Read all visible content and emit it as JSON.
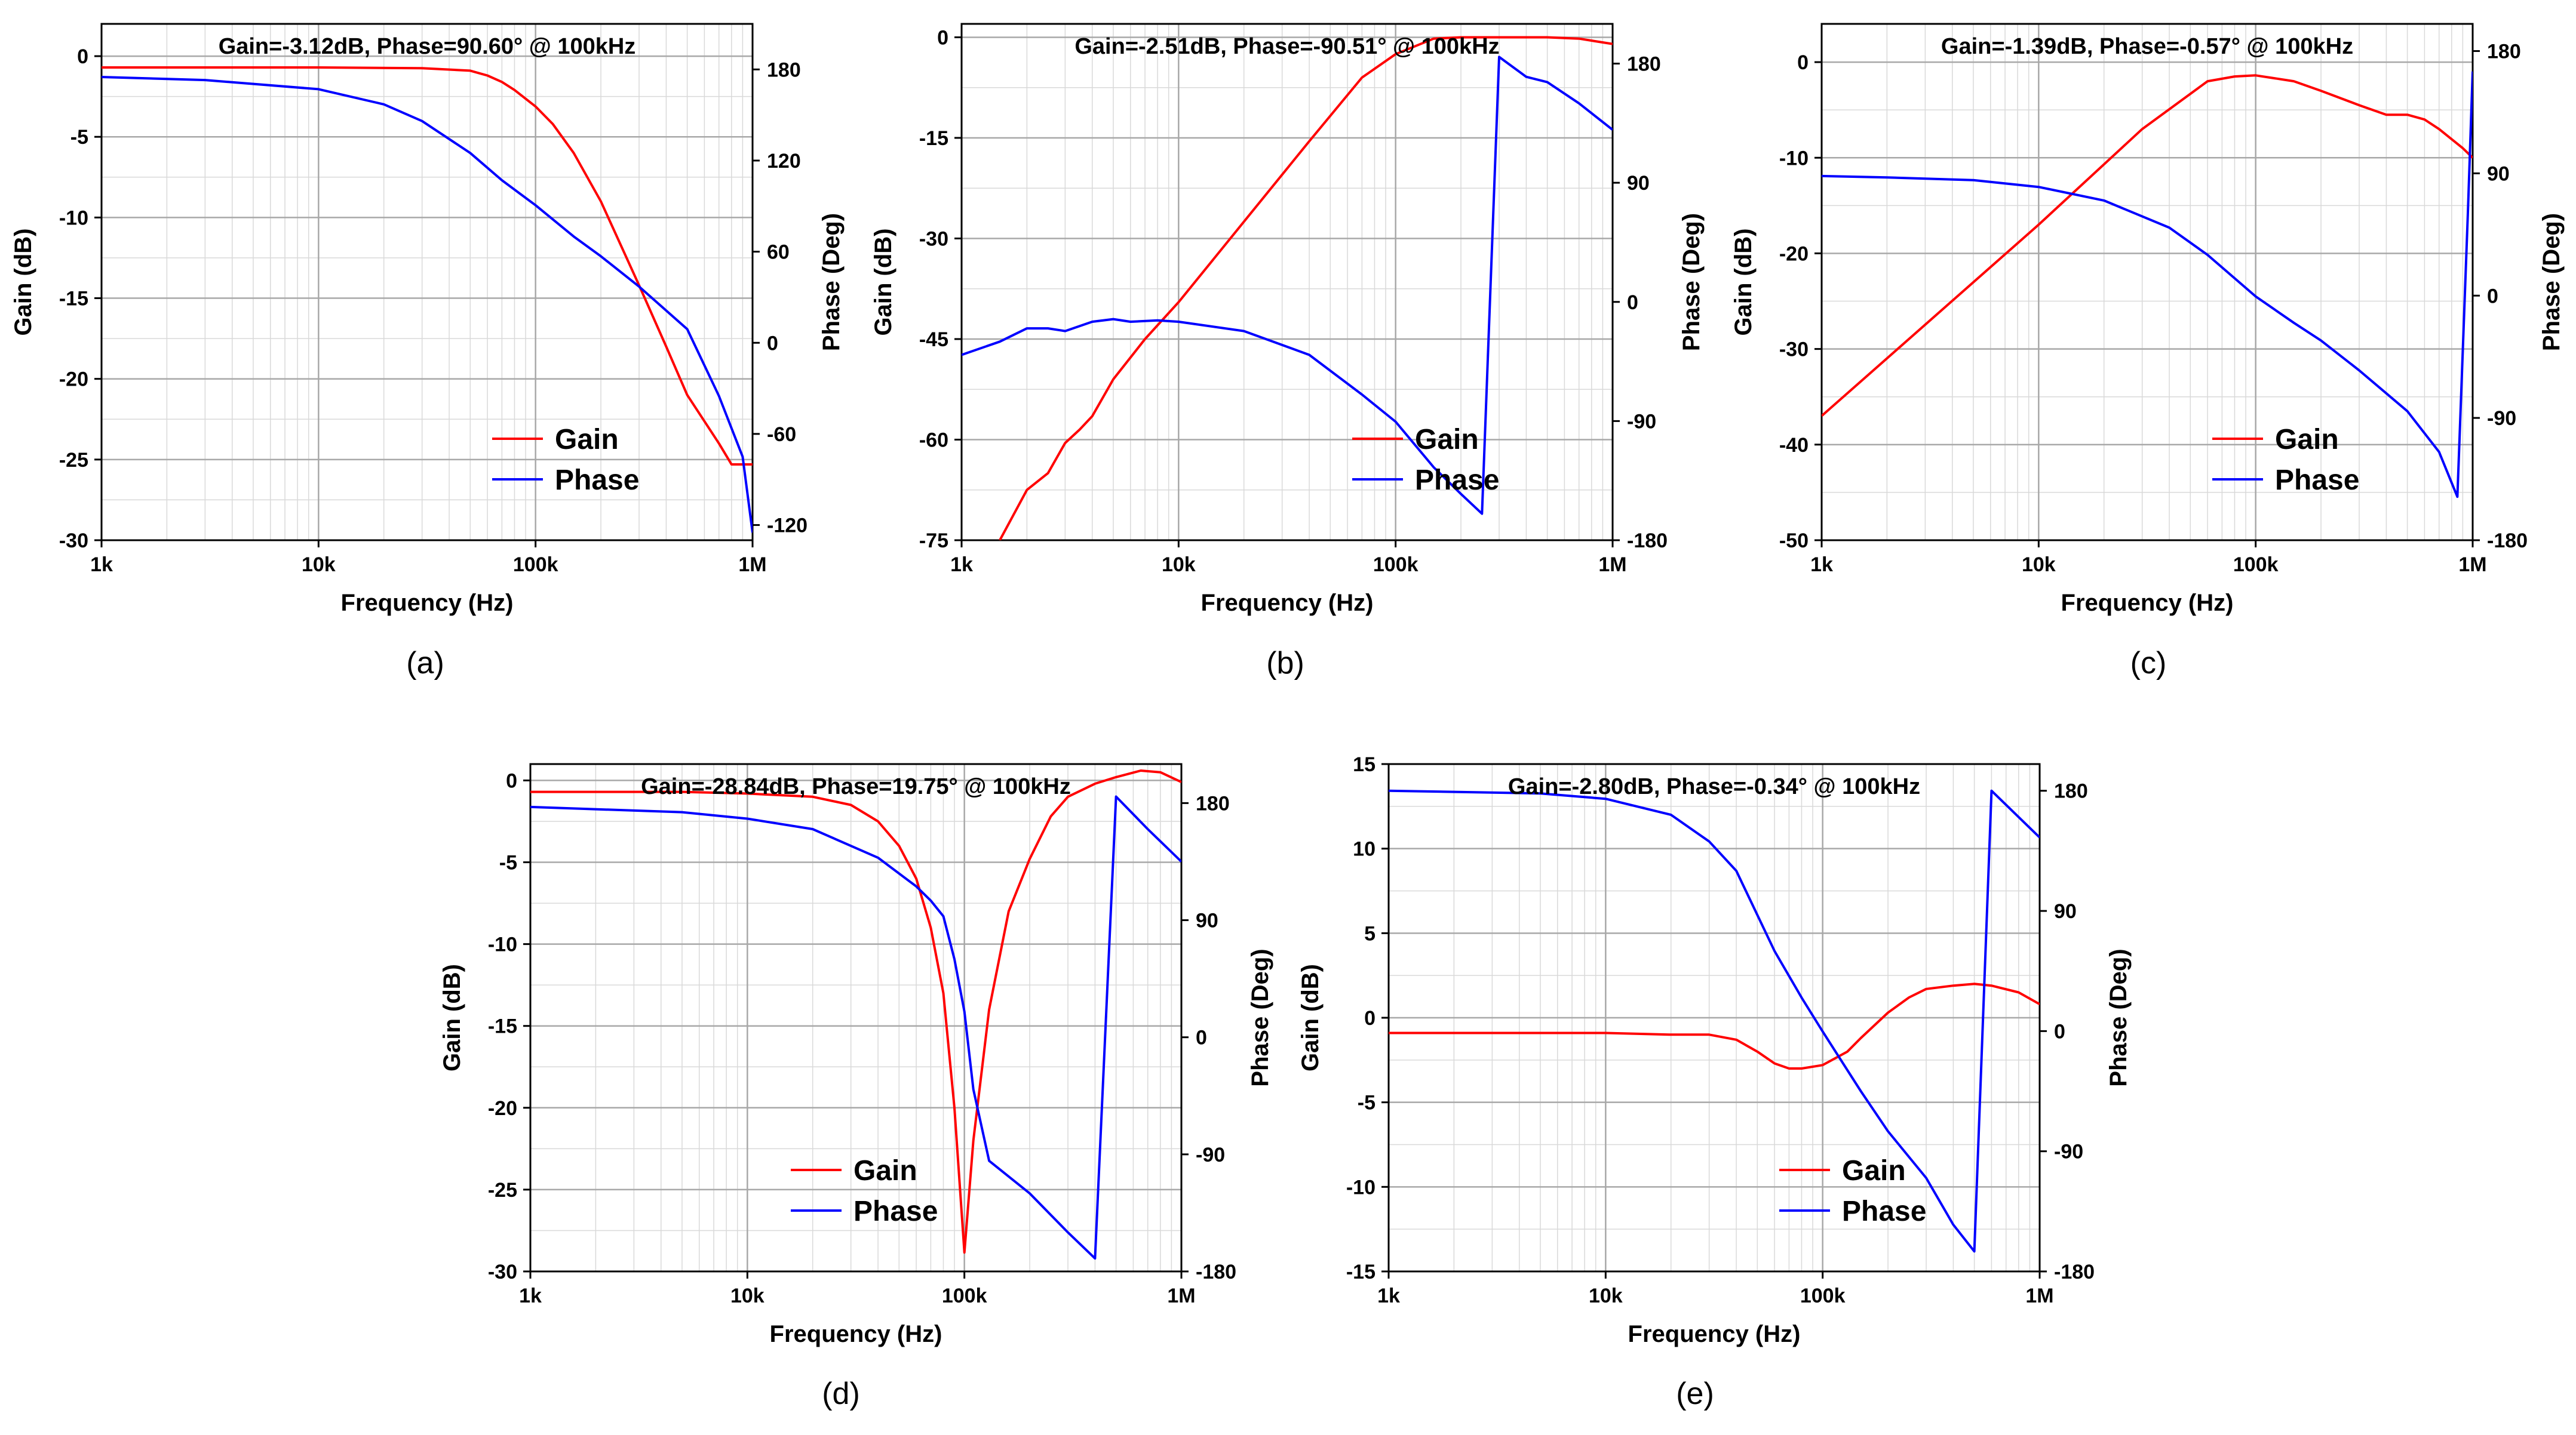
{
  "colors": {
    "gain": "#ff0000",
    "phase": "#0000ff",
    "grid_major": "#a8a8a8",
    "grid_minor": "#d9d9d9",
    "axis": "#000000"
  },
  "chart_data": [
    {
      "id": "a",
      "type": "line",
      "subcaption": "(a)",
      "title": "Gain=-3.12dB, Phase=90.60° @ 100kHz",
      "xlabel": "Frequency (Hz)",
      "ylabel": "Gain (dB)",
      "y2label": "Phase (Deg)",
      "xscale": "log",
      "xlim": [
        1000,
        1000000
      ],
      "x_ticks": [
        1000,
        10000,
        100000,
        1000000
      ],
      "x_tick_labels": [
        "1k",
        "10k",
        "100k",
        "1M"
      ],
      "ylim": [
        -30,
        2
      ],
      "y_ticks": [
        0,
        -5,
        -10,
        -15,
        -20,
        -25,
        -30
      ],
      "y_tick_labels": [
        "0",
        "-5",
        "-10",
        "-15",
        "-20",
        "-25",
        "-30"
      ],
      "y2lim": [
        -130,
        210
      ],
      "y2_ticks": [
        180,
        120,
        60,
        0,
        -60,
        -120
      ],
      "y2_tick_labels": [
        "180",
        "120",
        "60",
        "0",
        "-60",
        "-120"
      ],
      "legend": [
        "Gain",
        "Phase"
      ],
      "legend_position": "bottom-right",
      "series": [
        {
          "name": "Gain",
          "axis": "left",
          "color": "#ff0000",
          "x": [
            1000,
            3000,
            10000,
            30000,
            50000,
            60000,
            70000,
            80000,
            100000,
            120000,
            150000,
            200000,
            300000,
            400000,
            500000,
            700000,
            800000,
            1000000
          ],
          "values": [
            -0.7,
            -0.7,
            -0.7,
            -0.75,
            -0.9,
            -1.2,
            -1.6,
            -2.1,
            -3.12,
            -4.2,
            -6.0,
            -9.0,
            -14.2,
            -18.0,
            -21.0,
            -24.0,
            -25.3,
            -25.3
          ]
        },
        {
          "name": "Phase",
          "axis": "right",
          "color": "#0000ff",
          "x": [
            1000,
            3000,
            10000,
            20000,
            30000,
            50000,
            70000,
            100000,
            150000,
            200000,
            300000,
            500000,
            700000,
            900000,
            1000000
          ],
          "values": [
            175,
            173,
            167,
            157,
            146,
            125,
            107,
            90.6,
            70,
            57,
            37,
            9,
            -35,
            -75,
            -125
          ]
        }
      ]
    },
    {
      "id": "b",
      "type": "line",
      "subcaption": "(b)",
      "title": "Gain=-2.51dB, Phase=-90.51° @ 100kHz",
      "xlabel": "Frequency (Hz)",
      "ylabel": "Gain (dB)",
      "y2label": "Phase (Deg)",
      "xscale": "log",
      "xlim": [
        1000,
        1000000
      ],
      "x_ticks": [
        1000,
        10000,
        100000,
        1000000
      ],
      "x_tick_labels": [
        "1k",
        "10k",
        "100k",
        "1M"
      ],
      "ylim": [
        -75,
        2
      ],
      "y_ticks": [
        0,
        -15,
        -30,
        -45,
        -60,
        -75
      ],
      "y_tick_labels": [
        "0",
        "-15",
        "-30",
        "-45",
        "-60",
        "-75"
      ],
      "y2lim": [
        -180,
        210
      ],
      "y2_ticks": [
        180,
        90,
        0,
        -90,
        -180
      ],
      "y2_tick_labels": [
        "180",
        "90",
        "0",
        "-90",
        "-180"
      ],
      "legend": [
        "Gain",
        "Phase"
      ],
      "legend_position": "bottom-right",
      "series": [
        {
          "name": "Gain",
          "axis": "left",
          "color": "#ff0000",
          "x": [
            1500,
            2000,
            2500,
            3000,
            3500,
            4000,
            5000,
            7000,
            10000,
            20000,
            40000,
            70000,
            100000,
            150000,
            200000,
            300000,
            500000,
            700000,
            1000000
          ],
          "values": [
            -75,
            -67.5,
            -65,
            -60.5,
            -58.5,
            -56.5,
            -51,
            -45,
            -39.5,
            -27.5,
            -15.5,
            -6,
            -2.51,
            -0.2,
            0,
            0,
            0,
            -0.2,
            -1
          ]
        },
        {
          "name": "Phase",
          "axis": "right",
          "color": "#0000ff",
          "x": [
            1000,
            1500,
            2000,
            2500,
            3000,
            4000,
            5000,
            6000,
            8000,
            10000,
            20000,
            40000,
            70000,
            100000,
            150000,
            200000,
            250000,
            300000,
            400000,
            500000,
            700000,
            1000000
          ],
          "values": [
            -40,
            -30,
            -20,
            -20,
            -22,
            -15,
            -13,
            -15,
            -14,
            -15,
            -22,
            -40,
            -70,
            -90.51,
            -125,
            -145,
            -160,
            185,
            170,
            166,
            150,
            130
          ]
        }
      ]
    },
    {
      "id": "c",
      "type": "line",
      "subcaption": "(c)",
      "title": "Gain=-1.39dB, Phase=-0.57° @ 100kHz",
      "xlabel": "Frequency (Hz)",
      "ylabel": "Gain (dB)",
      "y2label": "Phase (Deg)",
      "xscale": "log",
      "xlim": [
        1000,
        1000000
      ],
      "x_ticks": [
        1000,
        10000,
        100000,
        1000000
      ],
      "x_tick_labels": [
        "1k",
        "10k",
        "100k",
        "1M"
      ],
      "ylim": [
        -50,
        4
      ],
      "y_ticks": [
        0,
        -10,
        -20,
        -30,
        -40,
        -50
      ],
      "y_tick_labels": [
        "0",
        "-10",
        "-20",
        "-30",
        "-40",
        "-50"
      ],
      "y2lim": [
        -180,
        200
      ],
      "y2_ticks": [
        180,
        90,
        0,
        -90,
        -180
      ],
      "y2_tick_labels": [
        "180",
        "90",
        "0",
        "-90",
        "-180"
      ],
      "legend": [
        "Gain",
        "Phase"
      ],
      "legend_position": "bottom-right",
      "series": [
        {
          "name": "Gain",
          "axis": "left",
          "color": "#ff0000",
          "x": [
            1000,
            10000,
            30000,
            60000,
            80000,
            100000,
            150000,
            200000,
            300000,
            400000,
            500000,
            600000,
            700000,
            900000,
            1000000
          ],
          "values": [
            -37,
            -17,
            -7,
            -2,
            -1.5,
            -1.39,
            -2,
            -3,
            -4.5,
            -5.5,
            -5.5,
            -6,
            -7,
            -9,
            -10
          ]
        },
        {
          "name": "Phase",
          "axis": "right",
          "color": "#0000ff",
          "x": [
            1000,
            2000,
            5000,
            10000,
            20000,
            40000,
            60000,
            100000,
            150000,
            200000,
            300000,
            500000,
            700000,
            850000,
            950000,
            1000000
          ],
          "values": [
            88,
            87,
            85,
            80,
            70,
            50,
            30,
            -0.57,
            -20,
            -33,
            -55,
            -85,
            -115,
            -148,
            60,
            165
          ]
        }
      ]
    },
    {
      "id": "d",
      "type": "line",
      "subcaption": "(d)",
      "title": "Gain=-28.84dB, Phase=19.75° @ 100kHz",
      "xlabel": "Frequency (Hz)",
      "ylabel": "Gain (dB)",
      "y2label": "Phase (Deg)",
      "xscale": "log",
      "xlim": [
        1000,
        1000000
      ],
      "x_ticks": [
        1000,
        10000,
        100000,
        1000000
      ],
      "x_tick_labels": [
        "1k",
        "10k",
        "100k",
        "1M"
      ],
      "ylim": [
        -30,
        1
      ],
      "y_ticks": [
        0,
        -5,
        -10,
        -15,
        -20,
        -25,
        -30
      ],
      "y_tick_labels": [
        "0",
        "-5",
        "-10",
        "-15",
        "-20",
        "-25",
        "-30"
      ],
      "y2lim": [
        -180,
        210
      ],
      "y2_ticks": [
        180,
        90,
        0,
        -90,
        -180
      ],
      "y2_tick_labels": [
        "180",
        "90",
        "0",
        "-90",
        "-180"
      ],
      "legend": [
        "Gain",
        "Phase"
      ],
      "legend_position": "bottom-center",
      "series": [
        {
          "name": "Gain",
          "axis": "left",
          "color": "#ff0000",
          "x": [
            1000,
            5000,
            10000,
            20000,
            30000,
            40000,
            50000,
            60000,
            70000,
            80000,
            90000,
            100000,
            110000,
            130000,
            160000,
            200000,
            250000,
            300000,
            400000,
            500000,
            650000,
            800000,
            1000000
          ],
          "values": [
            -0.7,
            -0.7,
            -0.8,
            -1,
            -1.5,
            -2.5,
            -4,
            -6,
            -9,
            -13,
            -20,
            -28.84,
            -22,
            -14,
            -8,
            -4.8,
            -2.2,
            -1,
            -0.2,
            0.2,
            0.6,
            0.5,
            -0.1
          ]
        },
        {
          "name": "Phase",
          "axis": "right",
          "color": "#0000ff",
          "x": [
            1000,
            5000,
            10000,
            20000,
            40000,
            60000,
            70000,
            80000,
            90000,
            100000,
            110000,
            130000,
            200000,
            300000,
            400000,
            500000,
            700000,
            1000000
          ],
          "values": [
            177,
            173,
            168,
            160,
            138,
            116,
            105,
            93,
            60,
            19.75,
            -40,
            -95,
            -120,
            -150,
            -170,
            185,
            160,
            135
          ]
        }
      ]
    },
    {
      "id": "e",
      "type": "line",
      "subcaption": "(e)",
      "title": "Gain=-2.80dB, Phase=-0.34° @ 100kHz",
      "xlabel": "Frequency (Hz)",
      "ylabel": "Gain (dB)",
      "y2label": "Phase (Deg)",
      "xscale": "log",
      "xlim": [
        1000,
        1000000
      ],
      "x_ticks": [
        1000,
        10000,
        100000,
        1000000
      ],
      "x_tick_labels": [
        "1k",
        "10k",
        "100k",
        "1M"
      ],
      "ylim": [
        -15,
        15
      ],
      "y_ticks": [
        15,
        10,
        5,
        0,
        -5,
        -10,
        -15
      ],
      "y_tick_labels": [
        "15",
        "10",
        "5",
        "0",
        "-5",
        "-10",
        "-15"
      ],
      "y2lim": [
        -180,
        200
      ],
      "y2_ticks": [
        180,
        90,
        0,
        -90,
        -180
      ],
      "y2_tick_labels": [
        "180",
        "90",
        "0",
        "-90",
        "-180"
      ],
      "legend": [
        "Gain",
        "Phase"
      ],
      "legend_position": "bottom-right",
      "series": [
        {
          "name": "Gain",
          "axis": "left",
          "color": "#ff0000",
          "x": [
            1000,
            10000,
            20000,
            30000,
            40000,
            50000,
            60000,
            70000,
            80000,
            100000,
            130000,
            150000,
            200000,
            250000,
            300000,
            400000,
            500000,
            600000,
            800000,
            1000000
          ],
          "values": [
            -0.9,
            -0.9,
            -1,
            -1,
            -1.3,
            -2,
            -2.7,
            -3,
            -3,
            -2.8,
            -2,
            -1.2,
            0.3,
            1.2,
            1.7,
            1.9,
            2,
            1.9,
            1.5,
            0.8
          ]
        },
        {
          "name": "Phase",
          "axis": "right",
          "color": "#0000ff",
          "x": [
            1000,
            5000,
            10000,
            20000,
            30000,
            40000,
            60000,
            80000,
            100000,
            150000,
            200000,
            300000,
            400000,
            500000,
            600000,
            1000000
          ],
          "values": [
            180,
            178,
            174,
            162,
            142,
            120,
            60,
            25,
            -0.34,
            -45,
            -75,
            -110,
            -145,
            -165,
            180,
            145
          ]
        }
      ]
    }
  ]
}
